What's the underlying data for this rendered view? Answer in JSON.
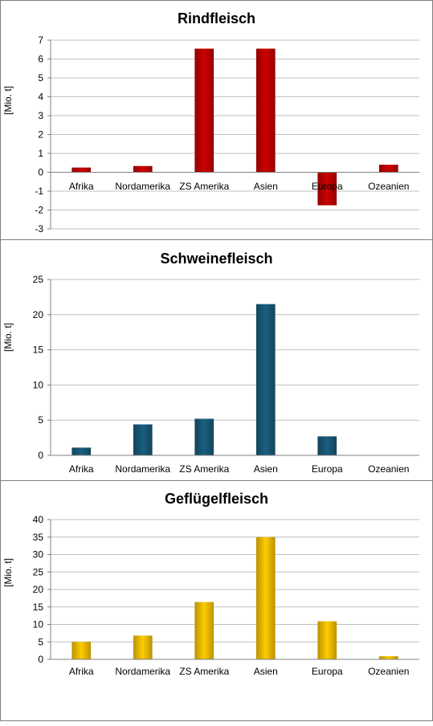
{
  "chart_data": [
    {
      "type": "bar",
      "title": "Rindfleisch",
      "ylabel": "[Mio. t]",
      "categories": [
        "Afrika",
        "Nordamerika",
        "ZS Amerika",
        "Asien",
        "Europa",
        "Ozeanien"
      ],
      "values": [
        0.25,
        0.33,
        6.55,
        6.55,
        -1.75,
        0.4
      ],
      "ylim": [
        -3,
        7
      ],
      "yticks": [
        7,
        6,
        5,
        4,
        3,
        2,
        1,
        0,
        -1,
        -2,
        -3
      ],
      "color": "#cc0000",
      "grid": true
    },
    {
      "type": "bar",
      "title": "Schweinefleisch",
      "ylabel": "[Mio. t]",
      "categories": [
        "Afrika",
        "Nordamerika",
        "ZS Amerika",
        "Asien",
        "Europa",
        "Ozeanien"
      ],
      "values": [
        1.1,
        4.4,
        5.2,
        21.5,
        2.7,
        0
      ],
      "ylim": [
        0,
        25
      ],
      "yticks": [
        25,
        20,
        15,
        10,
        5,
        0
      ],
      "color": "#1a5e80",
      "grid": true
    },
    {
      "type": "bar",
      "title": "Geflügelfleisch",
      "ylabel": "[Mio. t]",
      "categories": [
        "Afrika",
        "Nordamerika",
        "ZS Amerika",
        "Asien",
        "Europa",
        "Ozeanien"
      ],
      "values": [
        5,
        6.8,
        16.4,
        35,
        10.9,
        0.9
      ],
      "ylim": [
        0,
        40
      ],
      "yticks": [
        40,
        35,
        30,
        25,
        20,
        15,
        10,
        5,
        0
      ],
      "color": "#ffcc00",
      "grid": true
    }
  ]
}
